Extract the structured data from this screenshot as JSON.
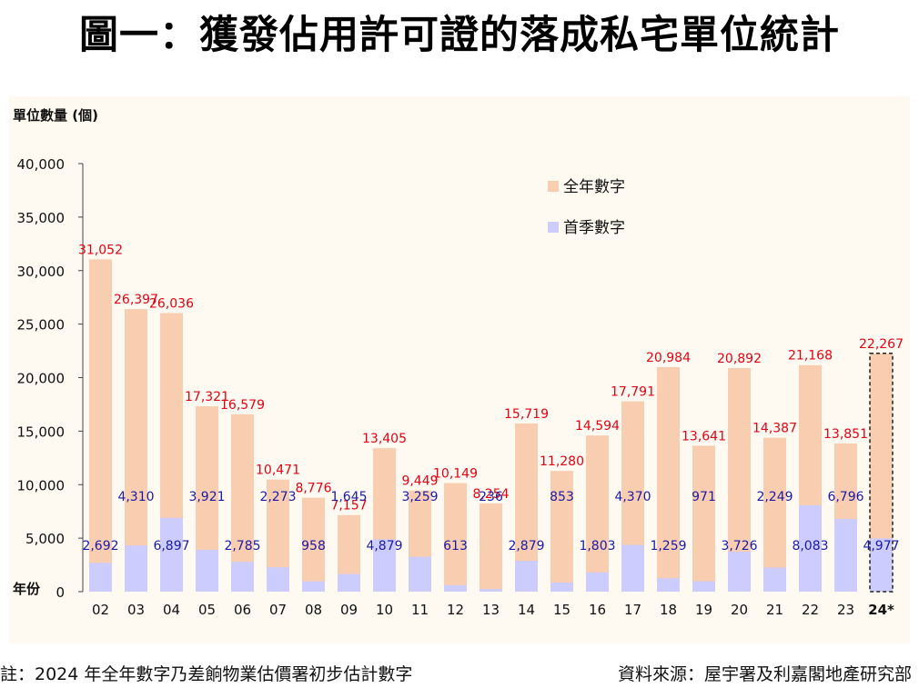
{
  "title": "圖一：獲發佔用許可證的落成私宅單位統計",
  "footnote": "註：2024 年全年數字乃差餉物業估價署初步估計數字",
  "source": "資料來源：屋宇署及利嘉閣地產研究部",
  "chart_data": {
    "type": "bar",
    "ylabel": "單位數量 (個)",
    "xlabel": "年份",
    "ylim": [
      0,
      40000
    ],
    "yticks": [
      "40,000",
      "35,000",
      "30,000",
      "25,000",
      "20,000",
      "15,000",
      "10,000",
      "5,000",
      "0"
    ],
    "ytick_values": [
      40000,
      35000,
      30000,
      25000,
      20000,
      15000,
      10000,
      5000,
      0
    ],
    "categories": [
      "02",
      "03",
      "04",
      "05",
      "06",
      "07",
      "08",
      "09",
      "10",
      "11",
      "12",
      "13",
      "14",
      "15",
      "16",
      "17",
      "18",
      "19",
      "20",
      "21",
      "22",
      "23",
      "24*"
    ],
    "legend_position": "top-right",
    "series": [
      {
        "name": "全年數字",
        "color": "#f9cdb0",
        "label_color": "#e60012",
        "values": [
          31052,
          26397,
          26036,
          17321,
          16579,
          10471,
          8776,
          7157,
          13405,
          9449,
          10149,
          8254,
          15719,
          11280,
          14594,
          17791,
          20984,
          13641,
          20892,
          14387,
          21168,
          13851,
          22267
        ],
        "labels": [
          "31,052",
          "26,397",
          "26,036",
          "17,321",
          "16,579",
          "10,471",
          "8,776",
          "7,157",
          "13,405",
          "9,449",
          "10,149",
          "8,254",
          "15,719",
          "11,280",
          "14,594",
          "17,791",
          "20,984",
          "13,641",
          "20,892",
          "14,387",
          "21,168",
          "13,851",
          "22,267"
        ]
      },
      {
        "name": "首季數字",
        "color": "#ccccff",
        "label_color": "#1a1aa6",
        "values": [
          2692,
          4310,
          6897,
          3921,
          2785,
          2273,
          958,
          1645,
          4879,
          3259,
          613,
          236,
          2879,
          853,
          1803,
          4370,
          1259,
          971,
          3726,
          2249,
          8083,
          6796,
          4977
        ],
        "labels": [
          "2,692",
          "4,310",
          "6,897",
          "3,921",
          "2,785",
          "2,273",
          "958",
          "1,645",
          "4,879",
          "3,259",
          "613",
          "236",
          "2,879",
          "853",
          "1,803",
          "4,370",
          "1,259",
          "971",
          "3,726",
          "2,249",
          "8,083",
          "6,796",
          "4,977"
        ]
      }
    ],
    "estimated_category": "24*"
  }
}
